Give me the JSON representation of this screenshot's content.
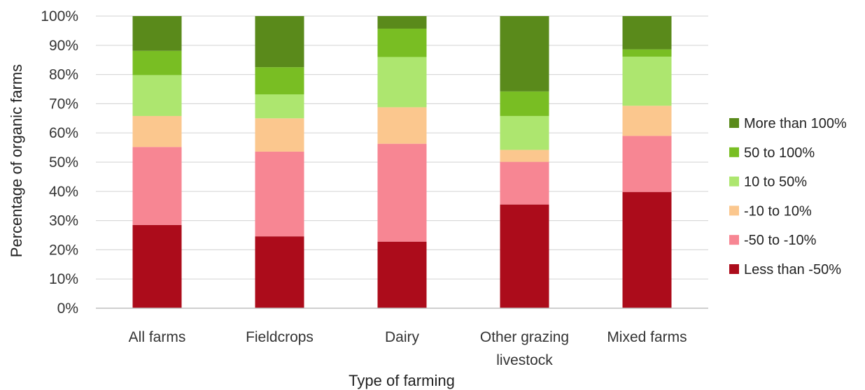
{
  "chart_data": {
    "type": "bar",
    "stacked": true,
    "title": "",
    "xlabel": "Type of farming",
    "ylabel": "Percentage of organic farms",
    "ylim": [
      0,
      100
    ],
    "yticks": [
      "0%",
      "10%",
      "20%",
      "30%",
      "40%",
      "50%",
      "60%",
      "70%",
      "80%",
      "90%",
      "100%"
    ],
    "grid": true,
    "legend_position": "right",
    "categories": [
      "All farms",
      "Fieldcrops",
      "Dairy",
      "Other grazing livestock",
      "Mixed farms"
    ],
    "category_lines": [
      [
        "All farms"
      ],
      [
        "Fieldcrops"
      ],
      [
        "Dairy"
      ],
      [
        "Other grazing",
        "livestock"
      ],
      [
        "Mixed farms"
      ]
    ],
    "series": [
      {
        "name": "Less than -50%",
        "color": "#ac0c1b",
        "values": [
          28.5,
          24.6,
          22.8,
          35.5,
          39.8
        ]
      },
      {
        "name": "-50 to -10%",
        "color": "#f78693",
        "values": [
          26.7,
          29.0,
          33.5,
          14.6,
          19.2
        ]
      },
      {
        "name": "-10 to 10%",
        "color": "#fbc78e",
        "values": [
          10.6,
          11.4,
          12.5,
          4.1,
          10.3
        ]
      },
      {
        "name": "10 to 50%",
        "color": "#ade66f",
        "values": [
          14.0,
          8.2,
          17.2,
          11.6,
          16.8
        ]
      },
      {
        "name": "50 to 100%",
        "color": "#79be23",
        "values": [
          8.3,
          9.3,
          9.7,
          8.4,
          2.5
        ]
      },
      {
        "name": "More than 100%",
        "color": "#5a8a1b",
        "values": [
          11.9,
          17.5,
          4.3,
          25.8,
          11.4
        ]
      }
    ]
  }
}
